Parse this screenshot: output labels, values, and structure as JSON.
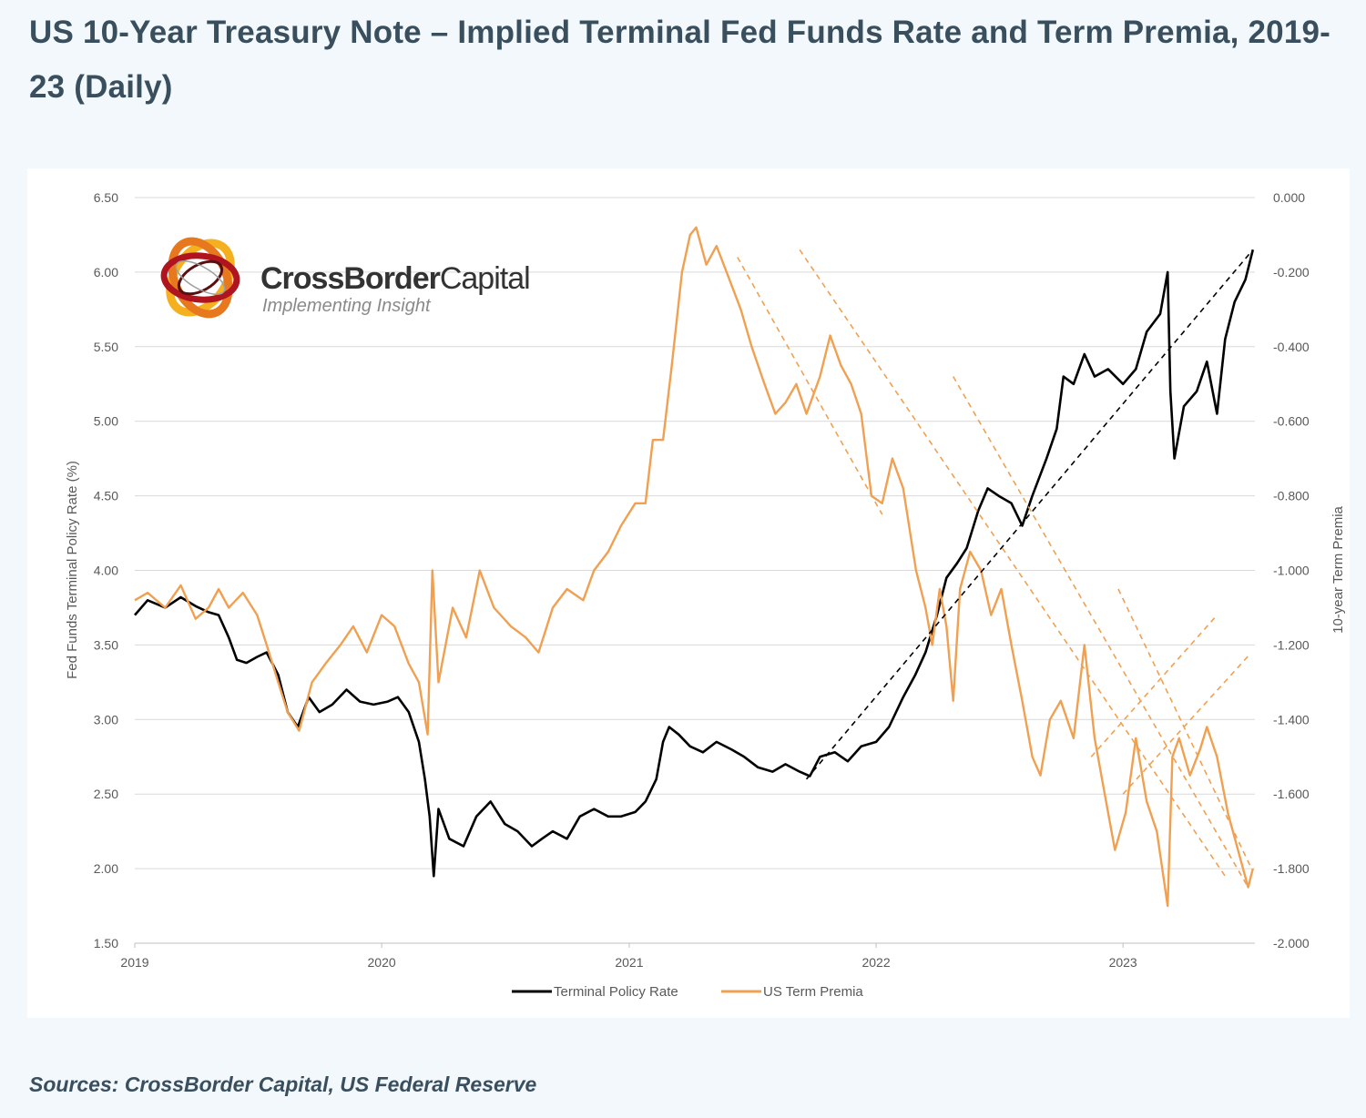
{
  "title": "US 10-Year Treasury Note – Implied Terminal Fed Funds Rate and Term Premia, 2019-23 (Daily)",
  "footer": "Sources: CrossBorder Capital, US Federal Reserve",
  "brand": {
    "name_bold": "CrossBorder",
    "name_light": "Capital",
    "tagline": "Implementing Insight",
    "logo_icon": "interlocking-rings-logo"
  },
  "colors": {
    "background": "#f2f8fc",
    "panel": "#ffffff",
    "grid": "#d9d9d9",
    "policy_rate": "#000000",
    "term_premia": "#f0a050",
    "title": "#3a4f5e"
  },
  "chart_data": {
    "type": "line",
    "title": "",
    "xlabel": "",
    "ylabel": "Fed Funds Terminal Policy Rate (%)",
    "y2label": "10-year Term Premia",
    "x_ticks": [
      "2019",
      "2020",
      "2021",
      "2022",
      "2023"
    ],
    "xlim": [
      "2019-01-01",
      "2023-07-15"
    ],
    "ylim": [
      1.5,
      6.5
    ],
    "y_ticks": [
      "6.50",
      "6.00",
      "5.50",
      "5.00",
      "4.50",
      "4.00",
      "3.50",
      "3.00",
      "2.50",
      "2.00",
      "1.50"
    ],
    "y2lim": [
      -2.0,
      0.0
    ],
    "y2_ticks": [
      "0.000",
      "-0.200",
      "-0.400",
      "-0.600",
      "-0.800",
      "-1.000",
      "-1.200",
      "-1.400",
      "-1.600",
      "-1.800",
      "-2.000"
    ],
    "grid": true,
    "legend_position": "bottom-center",
    "series": [
      {
        "name": "Terminal Policy Rate",
        "axis": "left",
        "color": "#000000",
        "points": [
          [
            "2019-01-01",
            3.7
          ],
          [
            "2019-01-20",
            3.8
          ],
          [
            "2019-02-15",
            3.75
          ],
          [
            "2019-03-10",
            3.82
          ],
          [
            "2019-04-01",
            3.76
          ],
          [
            "2019-04-20",
            3.72
          ],
          [
            "2019-05-05",
            3.7
          ],
          [
            "2019-05-20",
            3.55
          ],
          [
            "2019-06-01",
            3.4
          ],
          [
            "2019-06-15",
            3.38
          ],
          [
            "2019-07-01",
            3.42
          ],
          [
            "2019-07-15",
            3.45
          ],
          [
            "2019-08-01",
            3.3
          ],
          [
            "2019-08-15",
            3.05
          ],
          [
            "2019-08-30",
            2.95
          ],
          [
            "2019-09-15",
            3.15
          ],
          [
            "2019-10-01",
            3.05
          ],
          [
            "2019-10-20",
            3.1
          ],
          [
            "2019-11-10",
            3.2
          ],
          [
            "2019-11-30",
            3.12
          ],
          [
            "2019-12-20",
            3.1
          ],
          [
            "2020-01-10",
            3.12
          ],
          [
            "2020-01-25",
            3.15
          ],
          [
            "2020-02-10",
            3.05
          ],
          [
            "2020-02-25",
            2.85
          ],
          [
            "2020-03-05",
            2.6
          ],
          [
            "2020-03-12",
            2.35
          ],
          [
            "2020-03-18",
            1.95
          ],
          [
            "2020-03-25",
            2.4
          ],
          [
            "2020-04-10",
            2.2
          ],
          [
            "2020-05-01",
            2.15
          ],
          [
            "2020-05-20",
            2.35
          ],
          [
            "2020-06-10",
            2.45
          ],
          [
            "2020-07-01",
            2.3
          ],
          [
            "2020-07-20",
            2.25
          ],
          [
            "2020-08-10",
            2.15
          ],
          [
            "2020-08-25",
            2.2
          ],
          [
            "2020-09-10",
            2.25
          ],
          [
            "2020-10-01",
            2.2
          ],
          [
            "2020-10-20",
            2.35
          ],
          [
            "2020-11-10",
            2.4
          ],
          [
            "2020-12-01",
            2.35
          ],
          [
            "2020-12-20",
            2.35
          ],
          [
            "2021-01-10",
            2.38
          ],
          [
            "2021-01-25",
            2.45
          ],
          [
            "2021-02-10",
            2.6
          ],
          [
            "2021-02-20",
            2.85
          ],
          [
            "2021-03-01",
            2.95
          ],
          [
            "2021-03-15",
            2.9
          ],
          [
            "2021-04-01",
            2.82
          ],
          [
            "2021-04-20",
            2.78
          ],
          [
            "2021-05-10",
            2.85
          ],
          [
            "2021-06-01",
            2.8
          ],
          [
            "2021-06-20",
            2.75
          ],
          [
            "2021-07-10",
            2.68
          ],
          [
            "2021-08-01",
            2.65
          ],
          [
            "2021-08-20",
            2.7
          ],
          [
            "2021-09-10",
            2.65
          ],
          [
            "2021-09-25",
            2.62
          ],
          [
            "2021-10-10",
            2.75
          ],
          [
            "2021-11-01",
            2.78
          ],
          [
            "2021-11-20",
            2.72
          ],
          [
            "2021-12-10",
            2.82
          ],
          [
            "2022-01-01",
            2.85
          ],
          [
            "2022-01-20",
            2.95
          ],
          [
            "2022-02-10",
            3.15
          ],
          [
            "2022-02-28",
            3.3
          ],
          [
            "2022-03-15",
            3.45
          ],
          [
            "2022-04-01",
            3.7
          ],
          [
            "2022-04-15",
            3.95
          ],
          [
            "2022-05-01",
            4.05
          ],
          [
            "2022-05-15",
            4.15
          ],
          [
            "2022-06-01",
            4.4
          ],
          [
            "2022-06-15",
            4.55
          ],
          [
            "2022-07-01",
            4.5
          ],
          [
            "2022-07-20",
            4.45
          ],
          [
            "2022-08-05",
            4.3
          ],
          [
            "2022-08-20",
            4.5
          ],
          [
            "2022-09-10",
            4.75
          ],
          [
            "2022-09-25",
            4.95
          ],
          [
            "2022-10-05",
            5.3
          ],
          [
            "2022-10-20",
            5.25
          ],
          [
            "2022-11-05",
            5.45
          ],
          [
            "2022-11-20",
            5.3
          ],
          [
            "2022-12-10",
            5.35
          ],
          [
            "2023-01-01",
            5.25
          ],
          [
            "2023-01-20",
            5.35
          ],
          [
            "2023-02-05",
            5.6
          ],
          [
            "2023-02-25",
            5.72
          ],
          [
            "2023-03-08",
            6.0
          ],
          [
            "2023-03-12",
            5.2
          ],
          [
            "2023-03-18",
            4.75
          ],
          [
            "2023-04-01",
            5.1
          ],
          [
            "2023-04-20",
            5.2
          ],
          [
            "2023-05-05",
            5.4
          ],
          [
            "2023-05-20",
            5.05
          ],
          [
            "2023-06-01",
            5.55
          ],
          [
            "2023-06-15",
            5.8
          ],
          [
            "2023-07-01",
            5.95
          ],
          [
            "2023-07-12",
            6.15
          ]
        ]
      },
      {
        "name": "US Term Premia",
        "axis": "right",
        "color": "#f0a050",
        "points": [
          [
            "2019-01-01",
            -1.08
          ],
          [
            "2019-01-20",
            -1.06
          ],
          [
            "2019-02-15",
            -1.1
          ],
          [
            "2019-03-10",
            -1.04
          ],
          [
            "2019-04-01",
            -1.13
          ],
          [
            "2019-04-20",
            -1.1
          ],
          [
            "2019-05-05",
            -1.05
          ],
          [
            "2019-05-20",
            -1.1
          ],
          [
            "2019-06-10",
            -1.06
          ],
          [
            "2019-07-01",
            -1.12
          ],
          [
            "2019-07-15",
            -1.2
          ],
          [
            "2019-08-01",
            -1.3
          ],
          [
            "2019-08-15",
            -1.38
          ],
          [
            "2019-09-01",
            -1.43
          ],
          [
            "2019-09-20",
            -1.3
          ],
          [
            "2019-10-10",
            -1.25
          ],
          [
            "2019-11-01",
            -1.2
          ],
          [
            "2019-11-20",
            -1.15
          ],
          [
            "2019-12-10",
            -1.22
          ],
          [
            "2020-01-01",
            -1.12
          ],
          [
            "2020-01-20",
            -1.15
          ],
          [
            "2020-02-10",
            -1.25
          ],
          [
            "2020-02-25",
            -1.3
          ],
          [
            "2020-03-09",
            -1.44
          ],
          [
            "2020-03-16",
            -1.0
          ],
          [
            "2020-03-25",
            -1.3
          ],
          [
            "2020-04-15",
            -1.1
          ],
          [
            "2020-05-05",
            -1.18
          ],
          [
            "2020-05-25",
            -1.0
          ],
          [
            "2020-06-15",
            -1.1
          ],
          [
            "2020-07-10",
            -1.15
          ],
          [
            "2020-08-01",
            -1.18
          ],
          [
            "2020-08-20",
            -1.22
          ],
          [
            "2020-09-10",
            -1.1
          ],
          [
            "2020-10-01",
            -1.05
          ],
          [
            "2020-10-25",
            -1.08
          ],
          [
            "2020-11-10",
            -1.0
          ],
          [
            "2020-12-01",
            -0.95
          ],
          [
            "2020-12-20",
            -0.88
          ],
          [
            "2021-01-10",
            -0.82
          ],
          [
            "2021-01-25",
            -0.82
          ],
          [
            "2021-02-05",
            -0.65
          ],
          [
            "2021-02-20",
            -0.65
          ],
          [
            "2021-03-05",
            -0.45
          ],
          [
            "2021-03-20",
            -0.2
          ],
          [
            "2021-04-01",
            -0.1
          ],
          [
            "2021-04-10",
            -0.08
          ],
          [
            "2021-04-25",
            -0.18
          ],
          [
            "2021-05-10",
            -0.13
          ],
          [
            "2021-05-25",
            -0.2
          ],
          [
            "2021-06-15",
            -0.3
          ],
          [
            "2021-07-01",
            -0.4
          ],
          [
            "2021-07-20",
            -0.5
          ],
          [
            "2021-08-05",
            -0.58
          ],
          [
            "2021-08-20",
            -0.55
          ],
          [
            "2021-09-05",
            -0.5
          ],
          [
            "2021-09-20",
            -0.58
          ],
          [
            "2021-10-10",
            -0.48
          ],
          [
            "2021-10-25",
            -0.37
          ],
          [
            "2021-11-10",
            -0.45
          ],
          [
            "2021-11-25",
            -0.5
          ],
          [
            "2021-12-10",
            -0.58
          ],
          [
            "2021-12-25",
            -0.8
          ],
          [
            "2022-01-10",
            -0.82
          ],
          [
            "2022-01-25",
            -0.7
          ],
          [
            "2022-02-10",
            -0.78
          ],
          [
            "2022-03-01",
            -1.0
          ],
          [
            "2022-03-15",
            -1.1
          ],
          [
            "2022-03-25",
            -1.2
          ],
          [
            "2022-04-05",
            -1.05
          ],
          [
            "2022-04-15",
            -1.15
          ],
          [
            "2022-04-25",
            -1.35
          ],
          [
            "2022-05-05",
            -1.05
          ],
          [
            "2022-05-20",
            -0.95
          ],
          [
            "2022-06-05",
            -1.0
          ],
          [
            "2022-06-20",
            -1.12
          ],
          [
            "2022-07-05",
            -1.05
          ],
          [
            "2022-07-20",
            -1.2
          ],
          [
            "2022-08-05",
            -1.35
          ],
          [
            "2022-08-20",
            -1.5
          ],
          [
            "2022-09-01",
            -1.55
          ],
          [
            "2022-09-15",
            -1.4
          ],
          [
            "2022-10-01",
            -1.35
          ],
          [
            "2022-10-20",
            -1.45
          ],
          [
            "2022-11-05",
            -1.2
          ],
          [
            "2022-11-20",
            -1.45
          ],
          [
            "2022-12-05",
            -1.6
          ],
          [
            "2022-12-20",
            -1.75
          ],
          [
            "2023-01-05",
            -1.65
          ],
          [
            "2023-01-20",
            -1.45
          ],
          [
            "2023-02-05",
            -1.62
          ],
          [
            "2023-02-20",
            -1.7
          ],
          [
            "2023-03-08",
            -1.9
          ],
          [
            "2023-03-15",
            -1.5
          ],
          [
            "2023-03-25",
            -1.45
          ],
          [
            "2023-04-10",
            -1.55
          ],
          [
            "2023-04-25",
            -1.48
          ],
          [
            "2023-05-05",
            -1.42
          ],
          [
            "2023-05-20",
            -1.5
          ],
          [
            "2023-06-05",
            -1.65
          ],
          [
            "2023-06-20",
            -1.75
          ],
          [
            "2023-07-05",
            -1.85
          ],
          [
            "2023-07-12",
            -1.8
          ]
        ]
      }
    ],
    "trendlines": [
      {
        "color": "#000000",
        "axis": "left",
        "from": [
          "2021-09-20",
          2.6
        ],
        "to": [
          "2023-07-12",
          6.15
        ]
      },
      {
        "color": "#f0a050",
        "axis": "right",
        "from": [
          "2021-06-10",
          -0.16
        ],
        "to": [
          "2022-01-10",
          -0.85
        ]
      },
      {
        "color": "#f0a050",
        "axis": "right",
        "from": [
          "2021-09-10",
          -0.14
        ],
        "to": [
          "2023-06-01",
          -1.82
        ]
      },
      {
        "color": "#f0a050",
        "axis": "right",
        "from": [
          "2022-04-25",
          -0.48
        ],
        "to": [
          "2023-07-05",
          -1.85
        ]
      },
      {
        "color": "#f0a050",
        "axis": "right",
        "from": [
          "2022-11-15",
          -1.5
        ],
        "to": [
          "2023-05-20",
          -1.12
        ]
      },
      {
        "color": "#f0a050",
        "axis": "right",
        "from": [
          "2023-01-01",
          -1.6
        ],
        "to": [
          "2023-07-05",
          -1.23
        ]
      },
      {
        "color": "#f0a050",
        "axis": "right",
        "from": [
          "2022-12-25",
          -1.05
        ],
        "to": [
          "2023-07-10",
          -1.8
        ]
      }
    ]
  }
}
